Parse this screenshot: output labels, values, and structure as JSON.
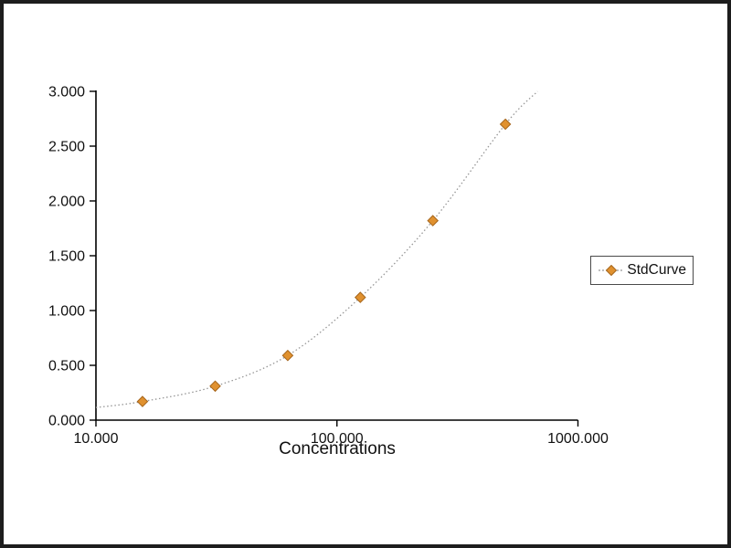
{
  "chart_data": {
    "type": "line",
    "title": "",
    "xlabel": "Concentrations",
    "ylabel": "",
    "x_scale": "log10",
    "xlim": [
      10,
      1000
    ],
    "ylim": [
      0,
      3
    ],
    "grid": false,
    "legend_position": "right",
    "x_ticks": [
      {
        "value": 10,
        "label": "10.000"
      },
      {
        "value": 100,
        "label": "100.000"
      },
      {
        "value": 1000,
        "label": "1000.000"
      }
    ],
    "y_ticks": [
      {
        "value": 0,
        "label": "0.000"
      },
      {
        "value": 0.5,
        "label": "0.500"
      },
      {
        "value": 1,
        "label": "1.000"
      },
      {
        "value": 1.5,
        "label": "1.500"
      },
      {
        "value": 2,
        "label": "2.000"
      },
      {
        "value": 2.5,
        "label": "2.500"
      },
      {
        "value": 3,
        "label": "3.000"
      }
    ],
    "series": [
      {
        "name": "StdCurve",
        "marker": "diamond",
        "marker_color": "#E0912F",
        "marker_edge_color": "#A5651B",
        "line_color": "#979797",
        "line_style": "dotted",
        "points": [
          {
            "x": 15.6,
            "y": 0.17
          },
          {
            "x": 31.25,
            "y": 0.31
          },
          {
            "x": 62.5,
            "y": 0.59
          },
          {
            "x": 125,
            "y": 1.12
          },
          {
            "x": 250,
            "y": 1.82
          },
          {
            "x": 500,
            "y": 2.7
          }
        ],
        "curve_points": [
          {
            "x": 10,
            "y": 0.115
          },
          {
            "x": 15.6,
            "y": 0.17
          },
          {
            "x": 31.25,
            "y": 0.31
          },
          {
            "x": 62.5,
            "y": 0.59
          },
          {
            "x": 125,
            "y": 1.12
          },
          {
            "x": 250,
            "y": 1.82
          },
          {
            "x": 500,
            "y": 2.7
          },
          {
            "x": 680,
            "y": 3.0
          }
        ]
      }
    ]
  }
}
